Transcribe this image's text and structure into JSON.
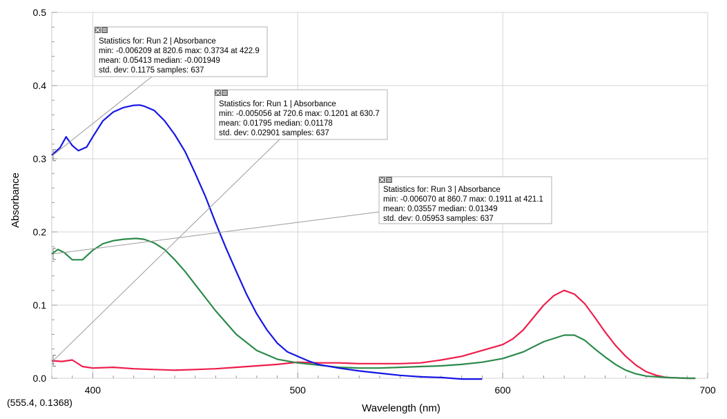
{
  "chart_data": {
    "type": "line",
    "xlabel": "Wavelength (nm)",
    "ylabel": "Absorbance",
    "xlim": [
      380,
      700
    ],
    "ylim": [
      0,
      0.5
    ],
    "x_ticks": [
      400,
      500,
      600,
      700
    ],
    "y_ticks": [
      0.0,
      0.1,
      0.2,
      0.3,
      0.4,
      0.5
    ],
    "grid": true,
    "series": [
      {
        "name": "Run 1",
        "color": "#ee1c4a",
        "x": [
          380,
          385,
          390,
          395,
          400,
          410,
          420,
          430,
          440,
          450,
          460,
          470,
          480,
          490,
          500,
          510,
          520,
          530,
          540,
          550,
          560,
          570,
          580,
          590,
          600,
          605,
          610,
          615,
          620,
          625,
          630,
          635,
          640,
          645,
          650,
          655,
          660,
          665,
          670,
          675,
          680,
          690,
          694
        ],
        "y": [
          0.024,
          0.023,
          0.025,
          0.016,
          0.014,
          0.015,
          0.013,
          0.012,
          0.011,
          0.012,
          0.013,
          0.015,
          0.017,
          0.019,
          0.022,
          0.021,
          0.021,
          0.02,
          0.02,
          0.02,
          0.021,
          0.025,
          0.03,
          0.038,
          0.046,
          0.054,
          0.066,
          0.083,
          0.1,
          0.113,
          0.1201,
          0.115,
          0.102,
          0.083,
          0.063,
          0.045,
          0.03,
          0.018,
          0.009,
          0.004,
          0.001,
          0.0,
          0.0
        ]
      },
      {
        "name": "Run 2",
        "color": "#1414e6",
        "x": [
          380,
          384,
          387,
          390,
          393,
          397,
          400,
          405,
          410,
          415,
          420,
          422.9,
          425,
          430,
          435,
          440,
          445,
          450,
          455,
          460,
          465,
          470,
          475,
          480,
          485,
          490,
          495,
          500,
          505,
          510,
          520,
          530,
          540,
          550,
          560,
          570,
          575,
          580,
          585,
          590
        ],
        "y": [
          0.305,
          0.315,
          0.33,
          0.318,
          0.311,
          0.316,
          0.33,
          0.352,
          0.364,
          0.37,
          0.373,
          0.3734,
          0.372,
          0.366,
          0.352,
          0.333,
          0.31,
          0.28,
          0.248,
          0.212,
          0.178,
          0.146,
          0.115,
          0.088,
          0.066,
          0.048,
          0.036,
          0.03,
          0.024,
          0.019,
          0.014,
          0.01,
          0.007,
          0.004,
          0.002,
          0.001,
          0.0,
          -0.001,
          -0.001,
          -0.001
        ]
      },
      {
        "name": "Run 3",
        "color": "#2a8a4a",
        "x": [
          380,
          383,
          386,
          390,
          395,
          400,
          405,
          410,
          415,
          421.1,
          425,
          430,
          435,
          440,
          445,
          450,
          460,
          470,
          480,
          490,
          500,
          510,
          520,
          530,
          540,
          550,
          560,
          570,
          580,
          590,
          600,
          610,
          620,
          630,
          635,
          640,
          645,
          650,
          655,
          660,
          665,
          670,
          680,
          690,
          694
        ],
        "y": [
          0.17,
          0.176,
          0.172,
          0.162,
          0.162,
          0.175,
          0.184,
          0.188,
          0.19,
          0.1911,
          0.19,
          0.185,
          0.176,
          0.162,
          0.146,
          0.128,
          0.092,
          0.06,
          0.038,
          0.026,
          0.021,
          0.018,
          0.015,
          0.014,
          0.014,
          0.015,
          0.016,
          0.017,
          0.019,
          0.022,
          0.027,
          0.036,
          0.05,
          0.059,
          0.059,
          0.052,
          0.04,
          0.029,
          0.019,
          0.011,
          0.006,
          0.003,
          0.001,
          0.0,
          0.0
        ]
      }
    ],
    "statistics": [
      {
        "title": "Statistics for: Run 2 | Absorbance",
        "line2": "min: -0.006209 at 820.6 max: 0.3734 at 422.9",
        "line3": "mean: 0.05413 median: -0.001949",
        "line4": "std. dev: 0.1175 samples: 637"
      },
      {
        "title": "Statistics for: Run 1 | Absorbance",
        "line2": "min: -0.005056 at 720.6 max: 0.1201 at 630.7",
        "line3": "mean: 0.01795 median: 0.01178",
        "line4": "std. dev: 0.02901 samples: 637"
      },
      {
        "title": "Statistics for: Run 3 | Absorbance",
        "line2": "min: -0.006070 at 860.7 max: 0.1911 at 421.1",
        "line3": "mean: 0.03557 median: 0.01349",
        "line4": "std. dev: 0.05953 samples: 637"
      }
    ]
  },
  "coordinate_readout": "(555.4, 0.1368)"
}
